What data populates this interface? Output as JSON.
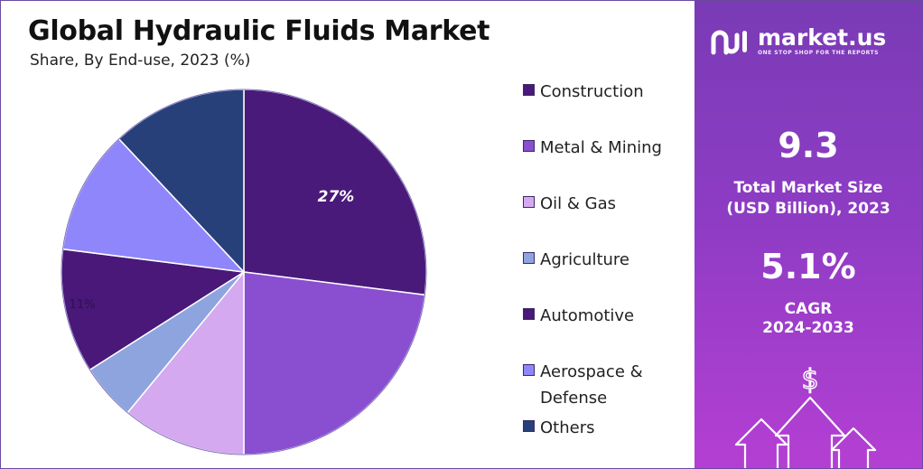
{
  "header": {
    "title": "Global Hydraulic Fluids Market",
    "subtitle": "Share, By End-use, 2023 (%)"
  },
  "chart_data": {
    "type": "pie",
    "title": "Global Hydraulic Fluids Market",
    "subtitle": "Share, By End-use, 2023 (%)",
    "categories": [
      "Construction",
      "Metal & Mining",
      "Oil & Gas",
      "Agriculture",
      "Automotive",
      "Aerospace & Defense",
      "Others"
    ],
    "values": [
      27,
      23,
      11,
      5,
      11,
      11,
      12
    ],
    "colors": [
      "#4a1a7a",
      "#8a4fd0",
      "#d4a9ef",
      "#8ea4df",
      "#4a1878",
      "#8f86fb",
      "#27407a"
    ],
    "data_labels": [
      "27%",
      "",
      "",
      "",
      "11%",
      "",
      ""
    ],
    "legend_position": "right"
  },
  "legend": {
    "items": [
      {
        "label": "Construction",
        "color": "#4a1a7a"
      },
      {
        "label": "Metal & Mining",
        "color": "#8a4fd0"
      },
      {
        "label": "Oil & Gas",
        "color": "#d4a9ef"
      },
      {
        "label": "Agriculture",
        "color": "#8ea4df"
      },
      {
        "label": "Automotive",
        "color": "#4a1878"
      },
      {
        "label": "Aerospace & Defense",
        "color": "#8f86fb"
      },
      {
        "label": "Others",
        "color": "#27407a"
      }
    ]
  },
  "sidebar": {
    "brand_name": "market.us",
    "brand_tagline": "ONE STOP SHOP FOR THE REPORTS",
    "market_size_value": "9.3",
    "market_size_label_line1": "Total Market Size",
    "market_size_label_line2": "(USD Billion), 2023",
    "cagr_value": "5.1%",
    "cagr_label_line1": "CAGR",
    "cagr_label_line2": "2024-2033",
    "graphic_symbol": "$",
    "icons": [
      "market-us-logo-icon",
      "dollar-growth-arrows-icon"
    ]
  }
}
